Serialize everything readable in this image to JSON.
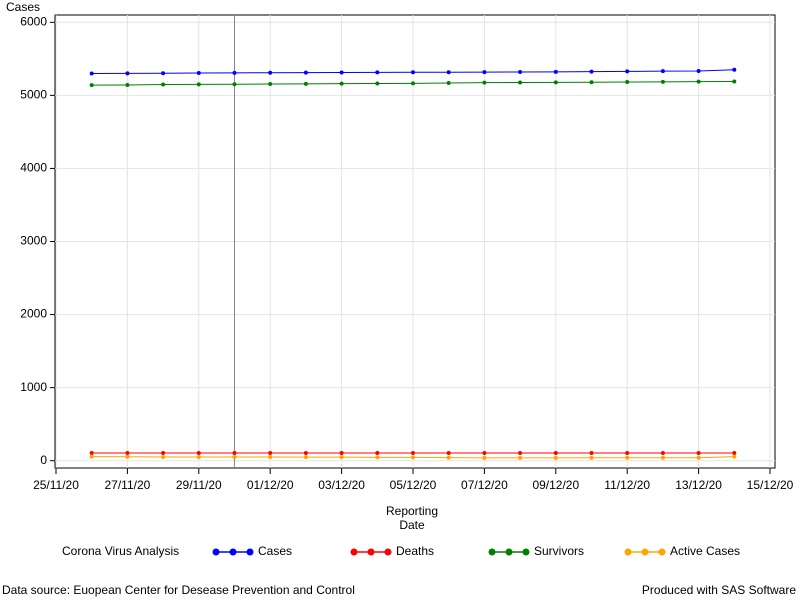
{
  "chart_data": {
    "type": "line",
    "ylabel": "Cases",
    "xlabel": [
      "Reporting",
      "Date"
    ],
    "legend_title": "Corona Virus Analysis",
    "footnote_left": "Data source: Euopean Center for Desease Prevention and Control",
    "footnote_right": "Produced with SAS Software",
    "x": [
      "26/11/20",
      "27/11/20",
      "28/11/20",
      "29/11/20",
      "30/11/20",
      "01/12/20",
      "02/12/20",
      "03/12/20",
      "04/12/20",
      "05/12/20",
      "06/12/20",
      "07/12/20",
      "08/12/20",
      "09/12/20",
      "10/12/20",
      "11/12/20",
      "12/12/20",
      "13/12/20",
      "14/12/20"
    ],
    "series": [
      {
        "name": "Cases",
        "color": "#0000ff",
        "values": [
          5300,
          5301,
          5303,
          5306,
          5308,
          5310,
          5311,
          5313,
          5314,
          5316,
          5317,
          5319,
          5320,
          5322,
          5325,
          5328,
          5331,
          5333,
          5350
        ]
      },
      {
        "name": "Deaths",
        "color": "#ff0000",
        "values": [
          105,
          105,
          105,
          105,
          105,
          105,
          105,
          105,
          105,
          105,
          105,
          105,
          105,
          105,
          105,
          105,
          105,
          105,
          105
        ]
      },
      {
        "name": "Survivors",
        "color": "#008000",
        "values": [
          5140,
          5142,
          5148,
          5150,
          5152,
          5155,
          5157,
          5160,
          5163,
          5165,
          5170,
          5175,
          5176,
          5178,
          5180,
          5183,
          5185,
          5188,
          5190
        ]
      },
      {
        "name": "Active Cases",
        "color": "#ffa500",
        "values": [
          55,
          54,
          50,
          51,
          51,
          50,
          49,
          48,
          46,
          46,
          42,
          39,
          39,
          39,
          40,
          40,
          41,
          40,
          55
        ]
      }
    ],
    "refline": "30/11/20",
    "xlim": [
      "25/11/20",
      "15/12/20"
    ],
    "xticks": [
      "25/11/20",
      "27/11/20",
      "29/11/20",
      "01/12/20",
      "03/12/20",
      "05/12/20",
      "07/12/20",
      "09/12/20",
      "11/12/20",
      "13/12/20",
      "15/12/20"
    ],
    "ylim": [
      -100,
      6100
    ],
    "yticks": [
      0,
      1000,
      2000,
      3000,
      4000,
      5000,
      6000
    ],
    "grid": true
  }
}
